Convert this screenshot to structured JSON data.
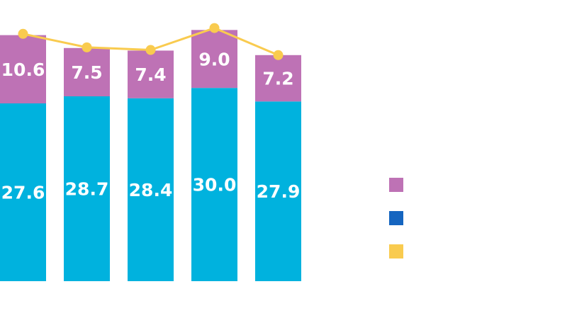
{
  "chart_data": {
    "type": "bar",
    "stacked": true,
    "categories": [
      "",
      "",
      "",
      "",
      ""
    ],
    "series": [
      {
        "values": [
          27.6,
          28.7,
          28.4,
          30.0,
          27.9
        ],
        "color": "#00B2DE",
        "labels": [
          "27.6",
          "28.7",
          "28.4",
          "30.0",
          "27.9"
        ]
      },
      {
        "values": [
          10.6,
          7.5,
          7.4,
          9.0,
          7.2
        ],
        "color": "#BE72B5",
        "labels": [
          "10.6",
          "7.5",
          "7.4",
          "9.0",
          "7.2"
        ]
      }
    ],
    "line_series": {
      "values": [
        38.4,
        36.3,
        35.9,
        39.3,
        35.1
      ],
      "color": "#F9CB4F"
    },
    "legend": {
      "placement": "right",
      "entries": [
        {
          "color": "#BE72B5",
          "label": ""
        },
        {
          "color": "#1565C0",
          "label": ""
        },
        {
          "color": "#F9CB4F",
          "label": ""
        }
      ]
    },
    "ylim": [
      0,
      40
    ],
    "grid": false
  }
}
